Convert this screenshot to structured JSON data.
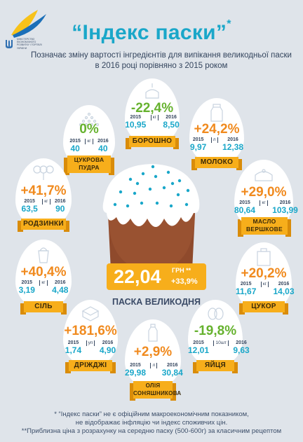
{
  "logo": {
    "ministry": "МІНІСТЕРСТВО ЕКОНОМІЧНОГО РОЗВИТКУ І ТОРГІВЛІ УКРАЇНИ"
  },
  "title": "“Індекс паски”",
  "title_mark": "*",
  "subtitle": "Позначає зміну вартості інгредієнтів для випікання великодньої паски в 2016 році порівняно з 2015 роком",
  "items": {
    "sugar": {
      "pct": "0%",
      "y1": "2015",
      "y2": "2016",
      "p1": "40",
      "unit": "кг",
      "p2": "40",
      "label": "ЦУКРОВА ПУДРА"
    },
    "flour": {
      "pct": "-22,4%",
      "y1": "2015",
      "y2": "2016",
      "p1": "10,95",
      "unit": "кг",
      "p2": "8,50",
      "label": "БОРОШНО"
    },
    "milk": {
      "pct": "+24,2%",
      "y1": "2015",
      "y2": "2016",
      "p1": "9,97",
      "unit": "л",
      "p2": "12,38",
      "label": "МОЛОКО"
    },
    "raisins": {
      "pct": "+41,7%",
      "y1": "2015",
      "y2": "2016",
      "p1": "63,5",
      "unit": "кг",
      "p2": "90",
      "label": "РОДЗИНКИ"
    },
    "butter": {
      "pct": "+29,0%",
      "y1": "2015",
      "y2": "2016",
      "p1": "80,64",
      "unit": "кг",
      "p2": "103,99",
      "label": "МАСЛО ВЕРШКОВЕ"
    },
    "salt": {
      "pct": "+40,4%",
      "y1": "2015",
      "y2": "2016",
      "p1": "3,19",
      "unit": "кг",
      "p2": "4,48",
      "label": "СІЛЬ"
    },
    "sugar2": {
      "pct": "+20,2%",
      "y1": "2015",
      "y2": "2016",
      "p1": "11,67",
      "unit": "кг",
      "p2": "14,03",
      "label": "ЦУКОР"
    },
    "yeast": {
      "pct": "+181,6%",
      "y1": "2015",
      "y2": "2016",
      "p1": "1,74",
      "unit": "уп",
      "p2": "4,90",
      "label": "ДРІЖДЖІ"
    },
    "oil": {
      "pct": "+2,9%",
      "y1": "2015",
      "y2": "2016",
      "p1": "29,98",
      "unit": "л",
      "p2": "30,84",
      "label": "ОЛІЯ СОНЯШНИКОВА"
    },
    "eggs": {
      "pct": "-19,8%",
      "y1": "2015",
      "y2": "2016",
      "p1": "12,01",
      "unit": "10шт",
      "p2": "9,63",
      "label": "ЯЙЦЯ"
    }
  },
  "price": {
    "value": "22,04",
    "unit": "ГРН **",
    "change": "+33,9%",
    "label": "ПАСКА ВЕЛИКОДНЯ"
  },
  "footnotes": [
    "* “Індекс паски” не є офіційним макроекономічним показником,",
    "не відображає інфляцію чи індекс споживчих цін.",
    "**Приблизна ціна з розрахунку на середню паску (500-600г) за класичним рецептом"
  ],
  "colors": {
    "accent": "#1aa7c9",
    "increase": "#f08a1e",
    "decrease": "#66b22e",
    "banner": "#f7ae1b",
    "cake": "#8f4a2c",
    "background": "#dfe4ea"
  }
}
